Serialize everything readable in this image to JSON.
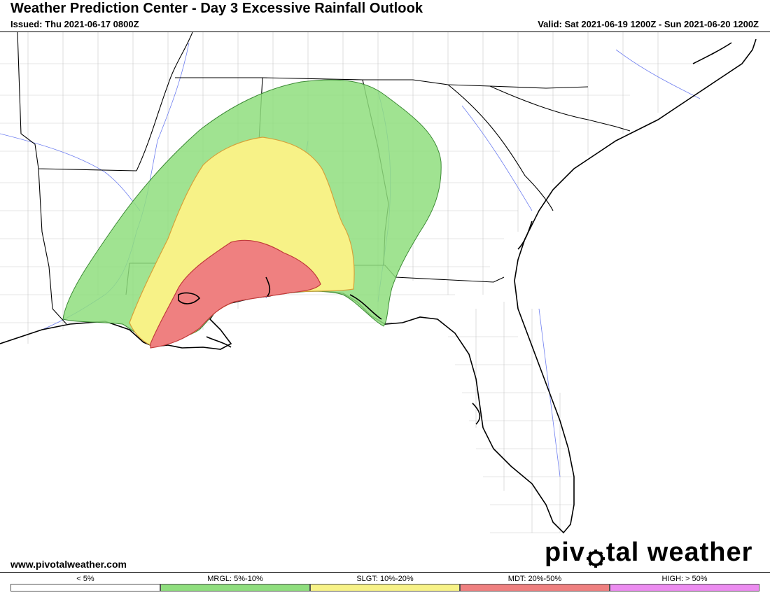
{
  "header": {
    "title": "Weather Prediction Center - Day 3 Excessive Rainfall Outlook",
    "issued": "Issued: Thu 2021-06-17 0800Z",
    "valid": "Valid: Sat 2021-06-19 1200Z - Sun 2021-06-20 1200Z"
  },
  "footer": {
    "website": "www.pivotalweather.com",
    "brand_left": "piv",
    "brand_right": "tal weather",
    "brand_icon": "gear-icon"
  },
  "legend": [
    {
      "label": "< 5%",
      "color": "#ffffff"
    },
    {
      "label": "MRGL: 5%-10%",
      "color": "#8fde7e"
    },
    {
      "label": "SLGT: 10%-20%",
      "color": "#f7f287"
    },
    {
      "label": "MDT: 20%-50%",
      "color": "#ef8080"
    },
    {
      "label": "HIGH: > 50%",
      "color": "#ec8cf0"
    }
  ],
  "map": {
    "region": "Southeastern United States",
    "outlook_areas": [
      {
        "category": "MRGL",
        "color": "#8fde7e"
      },
      {
        "category": "SLGT",
        "color": "#f7f287"
      },
      {
        "category": "MDT",
        "color": "#ef8080"
      }
    ]
  }
}
